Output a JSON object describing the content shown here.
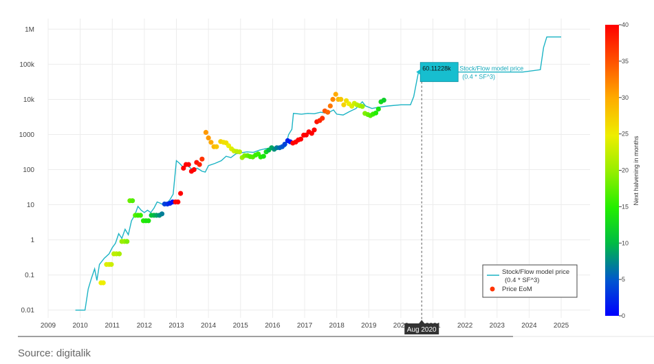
{
  "source": "Source: digitalik",
  "chart_data": {
    "type": "scatter",
    "y_scale": "log",
    "ylim": [
      0.006,
      2000000
    ],
    "xlim": [
      2009.0,
      2025.9
    ],
    "x_ticks": [
      "2009",
      "2010",
      "2011",
      "2012",
      "2013",
      "2014",
      "2015",
      "2016",
      "2017",
      "2018",
      "2019",
      "2020",
      "2021",
      "2022",
      "2023",
      "2024",
      "2025"
    ],
    "y_ticks": [
      {
        "v": 0.01,
        "label": "0.01"
      },
      {
        "v": 0.1,
        "label": "0.1"
      },
      {
        "v": 1,
        "label": "1"
      },
      {
        "v": 10,
        "label": "10"
      },
      {
        "v": 100,
        "label": "100"
      },
      {
        "v": 1000,
        "label": "1000"
      },
      {
        "v": 10000,
        "label": "10k"
      },
      {
        "v": 100000,
        "label": "100k"
      },
      {
        "v": 1000000,
        "label": "1M"
      }
    ],
    "grid": true,
    "legend": {
      "position": "bottom-right",
      "items": [
        {
          "label": "Stock/Flow model price",
          "sublabel": "(0.4 * SF^3)",
          "type": "line",
          "color": "#1ab3c4"
        },
        {
          "label": "Price EoM",
          "type": "dot",
          "color": "#ff3300"
        }
      ]
    },
    "colorbar": {
      "title": "Next halvening in months",
      "min": 0,
      "max": 40,
      "ticks": [
        "0",
        "5",
        "10",
        "15",
        "20",
        "25",
        "30",
        "35",
        "40"
      ]
    },
    "tooltip": {
      "value": "60.11228k",
      "series": "Stock/Flow model price",
      "sub": "(0.4 * SF^3)",
      "x": 2020.65,
      "y": 60112.28
    },
    "hover_x_label": "Aug 2020",
    "series": [
      {
        "name": "Stock/Flow model price",
        "type": "line",
        "color": "#1ab3c4",
        "points": [
          [
            2009.85,
            0.01
          ],
          [
            2010.15,
            0.01
          ],
          [
            2010.25,
            0.04
          ],
          [
            2010.35,
            0.08
          ],
          [
            2010.45,
            0.15
          ],
          [
            2010.52,
            0.07
          ],
          [
            2010.6,
            0.2
          ],
          [
            2010.75,
            0.3
          ],
          [
            2010.9,
            0.4
          ],
          [
            2011.0,
            0.6
          ],
          [
            2011.1,
            0.8
          ],
          [
            2011.2,
            1.5
          ],
          [
            2011.3,
            1.1
          ],
          [
            2011.4,
            2.0
          ],
          [
            2011.5,
            1.4
          ],
          [
            2011.6,
            3.5
          ],
          [
            2011.7,
            5
          ],
          [
            2011.8,
            9
          ],
          [
            2011.9,
            7
          ],
          [
            2012.0,
            6
          ],
          [
            2012.1,
            7
          ],
          [
            2012.2,
            6
          ],
          [
            2012.3,
            8
          ],
          [
            2012.4,
            12
          ],
          [
            2012.5,
            11
          ],
          [
            2012.6,
            10
          ],
          [
            2012.7,
            11
          ],
          [
            2012.8,
            14
          ],
          [
            2012.9,
            20
          ],
          [
            2013.0,
            180
          ],
          [
            2013.1,
            150
          ],
          [
            2013.2,
            120
          ],
          [
            2013.35,
            130
          ],
          [
            2013.5,
            100
          ],
          [
            2013.65,
            110
          ],
          [
            2013.8,
            90
          ],
          [
            2013.9,
            85
          ],
          [
            2014.0,
            130
          ],
          [
            2014.2,
            150
          ],
          [
            2014.4,
            180
          ],
          [
            2014.55,
            240
          ],
          [
            2014.7,
            220
          ],
          [
            2014.85,
            280
          ],
          [
            2015.0,
            300
          ],
          [
            2015.2,
            320
          ],
          [
            2015.4,
            310
          ],
          [
            2015.6,
            360
          ],
          [
            2015.8,
            400
          ],
          [
            2016.0,
            380
          ],
          [
            2016.2,
            410
          ],
          [
            2016.4,
            450
          ],
          [
            2016.5,
            1000
          ],
          [
            2016.6,
            1400
          ],
          [
            2016.65,
            4000
          ],
          [
            2016.9,
            3800
          ],
          [
            2017.1,
            4000
          ],
          [
            2017.3,
            3900
          ],
          [
            2017.5,
            4300
          ],
          [
            2017.7,
            4000
          ],
          [
            2017.9,
            5000
          ],
          [
            2018.0,
            3800
          ],
          [
            2018.2,
            3600
          ],
          [
            2018.4,
            4500
          ],
          [
            2018.6,
            5500
          ],
          [
            2018.8,
            8500
          ],
          [
            2018.9,
            6500
          ],
          [
            2019.1,
            5500
          ],
          [
            2019.3,
            6000
          ],
          [
            2019.6,
            6500
          ],
          [
            2020.0,
            7000
          ],
          [
            2020.3,
            7000
          ],
          [
            2020.4,
            12000
          ],
          [
            2020.55,
            60112.28
          ],
          [
            2020.65,
            60112.28
          ],
          [
            2023.8,
            60112.28
          ],
          [
            2024.35,
            70000
          ],
          [
            2024.45,
            300000
          ],
          [
            2024.55,
            600000
          ],
          [
            2025.0,
            600000
          ]
        ]
      },
      {
        "name": "Price EoM",
        "type": "scatter",
        "color_by": "Next halvening in months",
        "points": [
          [
            2010.65,
            0.06,
            25
          ],
          [
            2010.72,
            0.06,
            25
          ],
          [
            2010.82,
            0.2,
            24
          ],
          [
            2010.9,
            0.2,
            24
          ],
          [
            2010.97,
            0.2,
            23
          ],
          [
            2011.05,
            0.4,
            22
          ],
          [
            2011.13,
            0.4,
            22
          ],
          [
            2011.22,
            0.4,
            21
          ],
          [
            2011.3,
            0.9,
            20
          ],
          [
            2011.38,
            0.9,
            20
          ],
          [
            2011.46,
            0.9,
            19
          ],
          [
            2011.55,
            13,
            18
          ],
          [
            2011.63,
            13,
            17
          ],
          [
            2011.72,
            5,
            17
          ],
          [
            2011.8,
            5,
            16
          ],
          [
            2011.88,
            5,
            16
          ],
          [
            2011.97,
            3.5,
            15
          ],
          [
            2012.05,
            3.5,
            14
          ],
          [
            2012.13,
            3.5,
            14
          ],
          [
            2012.22,
            5,
            11
          ],
          [
            2012.3,
            5,
            10
          ],
          [
            2012.38,
            5,
            9
          ],
          [
            2012.47,
            5,
            8
          ],
          [
            2012.55,
            5.5,
            7
          ],
          [
            2012.63,
            10.5,
            4
          ],
          [
            2012.72,
            10.5,
            3
          ],
          [
            2012.8,
            11,
            2
          ],
          [
            2012.88,
            12,
            1
          ],
          [
            2012.97,
            12,
            48
          ],
          [
            2013.05,
            12,
            47
          ],
          [
            2013.13,
            21,
            45
          ],
          [
            2013.22,
            110,
            44
          ],
          [
            2013.3,
            140,
            43
          ],
          [
            2013.38,
            140,
            42
          ],
          [
            2013.47,
            90,
            41
          ],
          [
            2013.55,
            100,
            40
          ],
          [
            2013.63,
            160,
            39
          ],
          [
            2013.72,
            140,
            38
          ],
          [
            2013.8,
            200,
            37
          ],
          [
            2013.92,
            1150,
            31
          ],
          [
            2014.0,
            800,
            31
          ],
          [
            2014.08,
            600,
            30
          ],
          [
            2014.17,
            450,
            29
          ],
          [
            2014.25,
            450,
            28
          ],
          [
            2014.38,
            630,
            27
          ],
          [
            2014.47,
            600,
            26
          ],
          [
            2014.55,
            580,
            26
          ],
          [
            2014.63,
            480,
            25
          ],
          [
            2014.72,
            390,
            24
          ],
          [
            2014.8,
            340,
            23
          ],
          [
            2014.88,
            330,
            22
          ],
          [
            2014.97,
            320,
            22
          ],
          [
            2015.05,
            220,
            20
          ],
          [
            2015.13,
            250,
            19
          ],
          [
            2015.22,
            250,
            18
          ],
          [
            2015.3,
            235,
            17
          ],
          [
            2015.38,
            230,
            17
          ],
          [
            2015.47,
            260,
            16
          ],
          [
            2015.55,
            280,
            16
          ],
          [
            2015.63,
            230,
            15
          ],
          [
            2015.72,
            240,
            14
          ],
          [
            2015.8,
            320,
            13
          ],
          [
            2015.88,
            360,
            10
          ],
          [
            2015.97,
            420,
            9
          ],
          [
            2016.05,
            380,
            8
          ],
          [
            2016.13,
            420,
            7
          ],
          [
            2016.22,
            420,
            6
          ],
          [
            2016.3,
            450,
            5
          ],
          [
            2016.38,
            530,
            4
          ],
          [
            2016.47,
            670,
            2
          ],
          [
            2016.55,
            620,
            1
          ],
          [
            2016.63,
            570,
            48
          ],
          [
            2016.72,
            610,
            47
          ],
          [
            2016.8,
            700,
            46
          ],
          [
            2016.88,
            740,
            45
          ],
          [
            2016.97,
            960,
            44
          ],
          [
            2017.05,
            970,
            43
          ],
          [
            2017.13,
            1190,
            42
          ],
          [
            2017.22,
            1080,
            41
          ],
          [
            2017.3,
            1350,
            40
          ],
          [
            2017.38,
            2300,
            39
          ],
          [
            2017.47,
            2500,
            38
          ],
          [
            2017.55,
            2900,
            37
          ],
          [
            2017.63,
            4700,
            35
          ],
          [
            2017.72,
            4300,
            34
          ],
          [
            2017.8,
            6500,
            33
          ],
          [
            2017.88,
            10000,
            32
          ],
          [
            2017.97,
            14000,
            30
          ],
          [
            2018.05,
            10000,
            29
          ],
          [
            2018.13,
            10000,
            28
          ],
          [
            2018.22,
            7000,
            27
          ],
          [
            2018.3,
            9200,
            26
          ],
          [
            2018.38,
            7500,
            25
          ],
          [
            2018.47,
            6400,
            24
          ],
          [
            2018.55,
            7700,
            23
          ],
          [
            2018.63,
            7000,
            22
          ],
          [
            2018.72,
            6600,
            21
          ],
          [
            2018.8,
            6300,
            20
          ],
          [
            2018.88,
            4000,
            19
          ],
          [
            2018.97,
            3700,
            18
          ],
          [
            2019.05,
            3450,
            17
          ],
          [
            2019.13,
            3800,
            16
          ],
          [
            2019.22,
            4100,
            15
          ],
          [
            2019.3,
            5300,
            14
          ],
          [
            2019.38,
            8500,
            13
          ],
          [
            2019.47,
            9500,
            12
          ]
        ]
      }
    ]
  }
}
